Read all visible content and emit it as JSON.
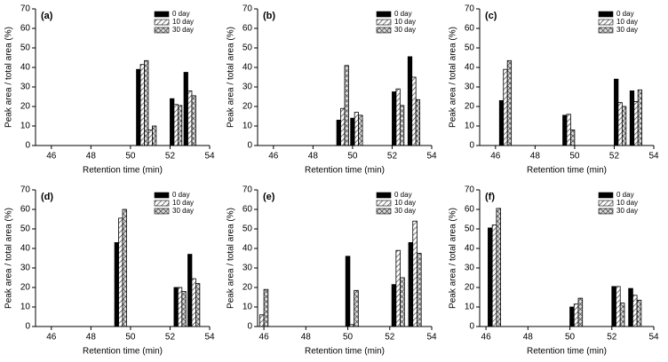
{
  "chart_data": [
    {
      "type": "bar",
      "label": "(a)",
      "x_label": "Retention time (min)",
      "y_label": "Peak area / total area (%)",
      "x": [
        50.6,
        51.0,
        52.3,
        53.0
      ],
      "series": [
        {
          "name": "0 day",
          "color": "#000000",
          "pattern": "solid",
          "values": [
            39,
            null,
            24,
            37.5
          ]
        },
        {
          "name": "10 day",
          "color": "#000000",
          "pattern": "diagonal",
          "values": [
            41.5,
            8,
            21,
            28
          ]
        },
        {
          "name": "30 day",
          "color": "#000000",
          "pattern": "cross",
          "values": [
            43.5,
            10,
            20.5,
            25.5
          ]
        }
      ],
      "xlim": [
        45.2,
        54
      ],
      "xticks": [
        46,
        48,
        50,
        52,
        54
      ],
      "ylim": [
        0,
        70
      ],
      "yticks": [
        0,
        10,
        20,
        30,
        40,
        50,
        60,
        70
      ]
    },
    {
      "type": "bar",
      "label": "(b)",
      "x_label": "Retention time (min)",
      "y_label": "Peak area / total area (%)",
      "x": [
        49.5,
        50.2,
        52.3,
        53.1
      ],
      "series": [
        {
          "name": "0 day",
          "color": "#000000",
          "pattern": "solid",
          "values": [
            13,
            14,
            27.5,
            45.5
          ]
        },
        {
          "name": "10 day",
          "color": "#000000",
          "pattern": "diagonal",
          "values": [
            19,
            17,
            29,
            35
          ]
        },
        {
          "name": "30 day",
          "color": "#000000",
          "pattern": "cross",
          "values": [
            41,
            15.5,
            20.5,
            23.5
          ]
        }
      ],
      "xlim": [
        45.2,
        54
      ],
      "xticks": [
        46,
        48,
        50,
        52,
        54
      ],
      "ylim": [
        0,
        70
      ],
      "yticks": [
        0,
        10,
        20,
        30,
        40,
        50,
        60,
        70
      ]
    },
    {
      "type": "bar",
      "label": "(c)",
      "x_label": "Retention time (min)",
      "y_label": "Peak area / total area (%)",
      "x": [
        46.5,
        49.7,
        52.3,
        53.1
      ],
      "series": [
        {
          "name": "0 day",
          "color": "#000000",
          "pattern": "solid",
          "values": [
            23,
            15.5,
            34,
            28
          ]
        },
        {
          "name": "10 day",
          "color": "#000000",
          "pattern": "diagonal",
          "values": [
            39,
            16,
            22,
            22.5
          ]
        },
        {
          "name": "30 day",
          "color": "#000000",
          "pattern": "cross",
          "values": [
            43.5,
            8,
            20,
            28.5
          ]
        }
      ],
      "xlim": [
        45.2,
        54
      ],
      "xticks": [
        46,
        48,
        50,
        52,
        54
      ],
      "ylim": [
        0,
        70
      ],
      "yticks": [
        0,
        10,
        20,
        30,
        40,
        50,
        60,
        70
      ]
    },
    {
      "type": "bar",
      "label": "(d)",
      "x_label": "Retention time (min)",
      "y_label": "Peak area / total area (%)",
      "x": [
        49.5,
        52.5,
        53.2
      ],
      "series": [
        {
          "name": "0 day",
          "color": "#000000",
          "pattern": "solid",
          "values": [
            43,
            20,
            37
          ]
        },
        {
          "name": "10 day",
          "color": "#000000",
          "pattern": "diagonal",
          "values": [
            55.5,
            20,
            24.5
          ]
        },
        {
          "name": "30 day",
          "color": "#000000",
          "pattern": "cross",
          "values": [
            60,
            18,
            22
          ]
        }
      ],
      "xlim": [
        45.2,
        54
      ],
      "xticks": [
        46,
        48,
        50,
        52,
        54
      ],
      "ylim": [
        0,
        70
      ],
      "yticks": [
        0,
        10,
        20,
        30,
        40,
        50,
        60,
        70
      ]
    },
    {
      "type": "bar",
      "label": "(e)",
      "x_label": "Retention time (min)",
      "y_label": "Peak area / total area (%)",
      "x": [
        45.9,
        50.2,
        52.4,
        53.2
      ],
      "series": [
        {
          "name": "0 day",
          "color": "#000000",
          "pattern": "solid",
          "values": [
            null,
            36,
            21.5,
            43
          ]
        },
        {
          "name": "10 day",
          "color": "#000000",
          "pattern": "diagonal",
          "values": [
            6,
            1,
            39,
            54
          ]
        },
        {
          "name": "30 day",
          "color": "#000000",
          "pattern": "cross",
          "values": [
            19,
            18.5,
            25,
            37.5
          ]
        }
      ],
      "xlim": [
        45.7,
        54
      ],
      "xticks": [
        46,
        48,
        50,
        52,
        54
      ],
      "ylim": [
        0,
        70
      ],
      "yticks": [
        0,
        10,
        20,
        30,
        40,
        50,
        60,
        70
      ]
    },
    {
      "type": "bar",
      "label": "(f)",
      "x_label": "Retention time (min)",
      "y_label": "Peak area / total area (%)",
      "x": [
        46.4,
        50.3,
        52.3,
        53.1
      ],
      "series": [
        {
          "name": "0 day",
          "color": "#000000",
          "pattern": "solid",
          "values": [
            50.5,
            10,
            20.5,
            19.5
          ]
        },
        {
          "name": "10 day",
          "color": "#000000",
          "pattern": "diagonal",
          "values": [
            52,
            11.5,
            20.5,
            16
          ]
        },
        {
          "name": "30 day",
          "color": "#000000",
          "pattern": "cross",
          "values": [
            60.5,
            14.5,
            12,
            13.5
          ]
        }
      ],
      "xlim": [
        45.7,
        54
      ],
      "xticks": [
        46,
        48,
        50,
        52,
        54
      ],
      "ylim": [
        0,
        70
      ],
      "yticks": [
        0,
        10,
        20,
        30,
        40,
        50,
        60,
        70
      ]
    }
  ]
}
